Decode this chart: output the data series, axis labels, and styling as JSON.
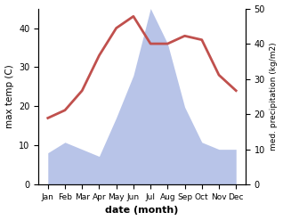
{
  "months": [
    "Jan",
    "Feb",
    "Mar",
    "Apr",
    "May",
    "Jun",
    "Jul",
    "Aug",
    "Sep",
    "Oct",
    "Nov",
    "Dec"
  ],
  "temperature": [
    17,
    19,
    24,
    33,
    40,
    43,
    36,
    36,
    38,
    37,
    28,
    24
  ],
  "precipitation": [
    9,
    12,
    10,
    8,
    19,
    31,
    50,
    40,
    22,
    12,
    10,
    10
  ],
  "temp_color": "#c0504d",
  "precip_fill_color": "#b8c4e8",
  "xlabel": "date (month)",
  "ylabel_left": "max temp (C)",
  "ylabel_right": "med. precipitation (kg/m2)",
  "ylim_left": [
    0,
    45
  ],
  "ylim_right": [
    0,
    50
  ],
  "yticks_left": [
    0,
    10,
    20,
    30,
    40
  ],
  "yticks_right": [
    0,
    10,
    20,
    30,
    40,
    50
  ],
  "bg_color": "#ffffff"
}
